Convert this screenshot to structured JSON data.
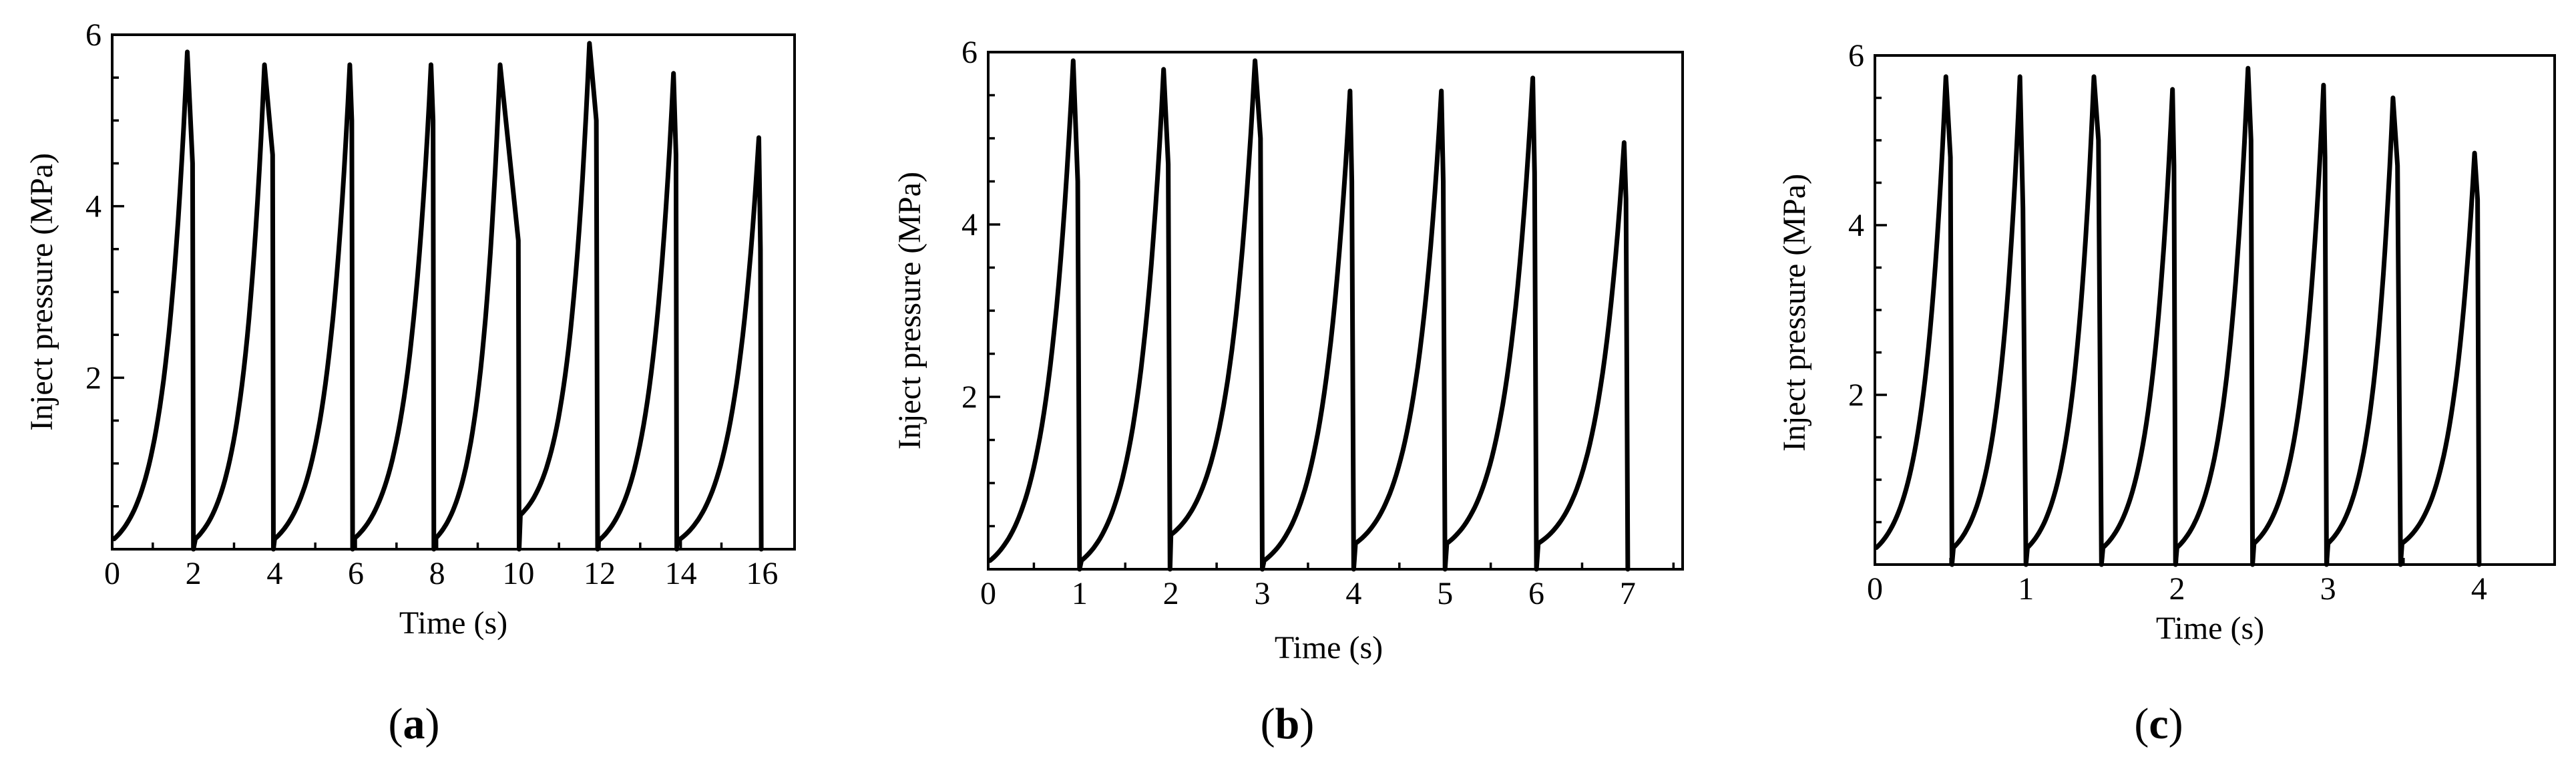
{
  "chart_data": [
    {
      "type": "line",
      "panel": "a",
      "xlabel": "Time (s)",
      "ylabel": "Inject pressure (MPa)",
      "xlim": [
        0,
        16.8
      ],
      "ylim": [
        0,
        6
      ],
      "xticks": [
        "0",
        "2",
        "4",
        "6",
        "8",
        "10",
        "12",
        "14",
        "16"
      ],
      "yticks": [
        "2",
        "4",
        "6"
      ],
      "series": [
        {
          "name": "Inject pressure",
          "cycles": [
            {
              "start": 0.05,
              "start_value": 0.12,
              "peak_time": 1.85,
              "peak_value": 5.8,
              "drop_time": 1.98,
              "drop_value": 4.5,
              "end_time": 2.0
            },
            {
              "start": 2.05,
              "start_value": 0.12,
              "peak_time": 3.75,
              "peak_value": 5.65,
              "drop_time": 3.95,
              "drop_value": 4.6,
              "end_time": 3.97
            },
            {
              "start": 4.0,
              "start_value": 0.12,
              "peak_time": 5.85,
              "peak_value": 5.65,
              "drop_time": 5.9,
              "drop_value": 5.0,
              "end_time": 5.92
            },
            {
              "start": 5.95,
              "start_value": 0.12,
              "peak_time": 7.85,
              "peak_value": 5.65,
              "drop_time": 7.9,
              "drop_value": 5.0,
              "end_time": 7.92
            },
            {
              "start": 7.95,
              "start_value": 0.12,
              "peak_time": 9.55,
              "peak_value": 5.65,
              "drop_time": 10.0,
              "drop_value": 3.6,
              "end_time": 10.02
            },
            {
              "start": 10.05,
              "start_value": 0.4,
              "peak_time": 11.75,
              "peak_value": 5.9,
              "drop_time": 11.92,
              "drop_value": 5.0,
              "end_time": 11.95
            },
            {
              "start": 11.98,
              "start_value": 0.1,
              "peak_time": 13.82,
              "peak_value": 5.55,
              "drop_time": 13.88,
              "drop_value": 4.6,
              "end_time": 13.9
            },
            {
              "start": 13.93,
              "start_value": 0.1,
              "peak_time": 15.92,
              "peak_value": 4.8,
              "drop_time": 15.96,
              "drop_value": 3.5,
              "end_time": 15.98
            }
          ]
        }
      ]
    },
    {
      "type": "line",
      "panel": "b",
      "xlabel": "Time  (s)",
      "ylabel": "Inject pressure (MPa)",
      "xlim": [
        0,
        7.6
      ],
      "ylim": [
        0,
        6
      ],
      "xticks": [
        "0",
        "1",
        "2",
        "3",
        "4",
        "5",
        "6",
        "7"
      ],
      "yticks": [
        "2",
        "4",
        "6"
      ],
      "series": [
        {
          "name": "Inject pressure",
          "cycles": [
            {
              "start": 0.02,
              "start_value": 0.1,
              "peak_time": 0.93,
              "peak_value": 5.9,
              "drop_time": 0.98,
              "drop_value": 4.5,
              "end_time": 1.0
            },
            {
              "start": 1.02,
              "start_value": 0.1,
              "peak_time": 1.92,
              "peak_value": 5.8,
              "drop_time": 1.97,
              "drop_value": 4.7,
              "end_time": 1.99
            },
            {
              "start": 2.0,
              "start_value": 0.4,
              "peak_time": 2.92,
              "peak_value": 5.9,
              "drop_time": 2.98,
              "drop_value": 5.0,
              "end_time": 3.0
            },
            {
              "start": 3.02,
              "start_value": 0.1,
              "peak_time": 3.96,
              "peak_value": 5.55,
              "drop_time": 3.98,
              "drop_value": 4.5,
              "end_time": 4.0
            },
            {
              "start": 4.02,
              "start_value": 0.3,
              "peak_time": 4.96,
              "peak_value": 5.55,
              "drop_time": 4.98,
              "drop_value": 4.5,
              "end_time": 5.0
            },
            {
              "start": 5.02,
              "start_value": 0.3,
              "peak_time": 5.96,
              "peak_value": 5.7,
              "drop_time": 5.98,
              "drop_value": 4.6,
              "end_time": 6.0
            },
            {
              "start": 6.02,
              "start_value": 0.3,
              "peak_time": 6.96,
              "peak_value": 4.95,
              "drop_time": 6.98,
              "drop_value": 4.3,
              "end_time": 7.0
            }
          ]
        }
      ]
    },
    {
      "type": "line",
      "panel": "c",
      "xlabel": "Time (s)",
      "ylabel": "Inject pressure (MPa)",
      "xlim": [
        0,
        4.5
      ],
      "ylim": [
        0,
        6
      ],
      "xticks": [
        "0",
        "1",
        "2",
        "3",
        "4"
      ],
      "yticks": [
        "2",
        "4",
        "6"
      ],
      "series": [
        {
          "name": "Inject pressure",
          "cycles": [
            {
              "start": 0.01,
              "start_value": 0.2,
              "peak_time": 0.47,
              "peak_value": 5.75,
              "drop_time": 0.5,
              "drop_value": 4.8,
              "end_time": 0.51
            },
            {
              "start": 0.52,
              "start_value": 0.2,
              "peak_time": 0.96,
              "peak_value": 5.75,
              "drop_time": 0.98,
              "drop_value": 4.2,
              "end_time": 1.0
            },
            {
              "start": 1.01,
              "start_value": 0.2,
              "peak_time": 1.45,
              "peak_value": 5.75,
              "drop_time": 1.48,
              "drop_value": 5.0,
              "end_time": 1.5
            },
            {
              "start": 1.51,
              "start_value": 0.2,
              "peak_time": 1.97,
              "peak_value": 5.6,
              "drop_time": 1.98,
              "drop_value": 4.7,
              "end_time": 1.99
            },
            {
              "start": 2.0,
              "start_value": 0.2,
              "peak_time": 2.47,
              "peak_value": 5.85,
              "drop_time": 2.49,
              "drop_value": 5.0,
              "end_time": 2.5
            },
            {
              "start": 2.51,
              "start_value": 0.25,
              "peak_time": 2.97,
              "peak_value": 5.65,
              "drop_time": 2.98,
              "drop_value": 4.8,
              "end_time": 2.99
            },
            {
              "start": 3.0,
              "start_value": 0.25,
              "peak_time": 3.43,
              "peak_value": 5.5,
              "drop_time": 3.46,
              "drop_value": 4.7,
              "end_time": 3.48
            },
            {
              "start": 3.49,
              "start_value": 0.25,
              "peak_time": 3.97,
              "peak_value": 4.85,
              "drop_time": 3.99,
              "drop_value": 4.3,
              "end_time": 4.0
            }
          ]
        }
      ]
    }
  ],
  "panels": {
    "a": {
      "open": "(",
      "letter": "a",
      "close": ")"
    },
    "b": {
      "open": "(",
      "letter": "b",
      "close": ")"
    },
    "c": {
      "open": "(",
      "letter": "c",
      "close": ")"
    }
  }
}
